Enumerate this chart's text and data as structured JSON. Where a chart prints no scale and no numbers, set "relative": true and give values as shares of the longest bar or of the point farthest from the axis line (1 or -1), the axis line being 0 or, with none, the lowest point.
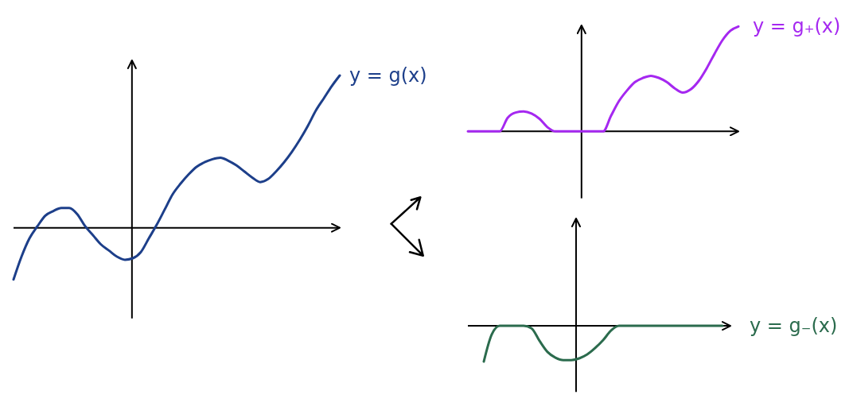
{
  "chart_data": [
    {
      "type": "line",
      "relative": true,
      "marker": "none",
      "categories": [
        null,
        null,
        null,
        null,
        null,
        null,
        null,
        null,
        null,
        null,
        null,
        null,
        null,
        null,
        null,
        null,
        null,
        null,
        null,
        null,
        null,
        null,
        null,
        null,
        null,
        null,
        null,
        null,
        null,
        null,
        null,
        null,
        null,
        null,
        null,
        null,
        null,
        null,
        null,
        null,
        null,
        null
      ],
      "series": [
        {
          "name": "y = g(x)",
          "color": "#1d3f8a",
          "values": [
            -0.34,
            -0.19,
            -0.07,
            0.01,
            0.08,
            0.11,
            0.13,
            0.13,
            0.09,
            0.01,
            -0.05,
            -0.11,
            -0.15,
            -0.19,
            -0.21,
            -0.2,
            -0.16,
            -0.07,
            0.02,
            0.12,
            0.22,
            0.29,
            0.35,
            0.4,
            0.43,
            0.45,
            0.46,
            0.44,
            0.41,
            0.37,
            0.33,
            0.3,
            0.32,
            0.37,
            0.43,
            0.5,
            0.58,
            0.67,
            0.77,
            0.85,
            0.93,
            1
          ]
        }
      ]
    },
    {
      "type": "line",
      "relative": true,
      "marker": "none",
      "categories": [
        null,
        null,
        null,
        null,
        null,
        null,
        null,
        null,
        null,
        null,
        null,
        null,
        null,
        null,
        null,
        null,
        null,
        null,
        null,
        null,
        null,
        null,
        null,
        null,
        null,
        null,
        null,
        null,
        null,
        null,
        null,
        null,
        null,
        null,
        null
      ],
      "series": [
        {
          "name": "y = g₊(x)",
          "color": "#a528f0",
          "values": [
            0,
            0,
            0,
            0,
            0,
            0.13,
            0.18,
            0.19,
            0.17,
            0.12,
            0.04,
            0,
            0,
            0,
            0,
            0,
            0,
            0,
            0.15,
            0.29,
            0.39,
            0.47,
            0.51,
            0.53,
            0.51,
            0.47,
            0.41,
            0.37,
            0.4,
            0.48,
            0.6,
            0.74,
            0.87,
            0.96,
            1
          ]
        }
      ]
    },
    {
      "type": "line",
      "relative": true,
      "marker": "none",
      "categories": [
        null,
        null,
        null,
        null,
        null,
        null,
        null,
        null,
        null,
        null,
        null,
        null,
        null,
        null,
        null,
        null,
        null,
        null,
        null,
        null,
        null,
        null,
        null,
        null,
        null,
        null,
        null,
        null,
        null,
        null,
        null,
        null,
        null,
        null
      ],
      "series": [
        {
          "name": "y = g₋(x)",
          "color": "#2b6b4d",
          "values": [
            null,
            null,
            -1,
            -0.24,
            0,
            0,
            0,
            0,
            -0.07,
            -0.42,
            -0.73,
            -0.89,
            -0.96,
            -0.96,
            -0.91,
            -0.8,
            -0.62,
            -0.4,
            -0.13,
            0,
            0,
            0,
            0,
            0,
            0,
            0,
            0,
            0,
            0,
            0,
            0,
            0,
            0,
            null
          ]
        }
      ]
    }
  ]
}
